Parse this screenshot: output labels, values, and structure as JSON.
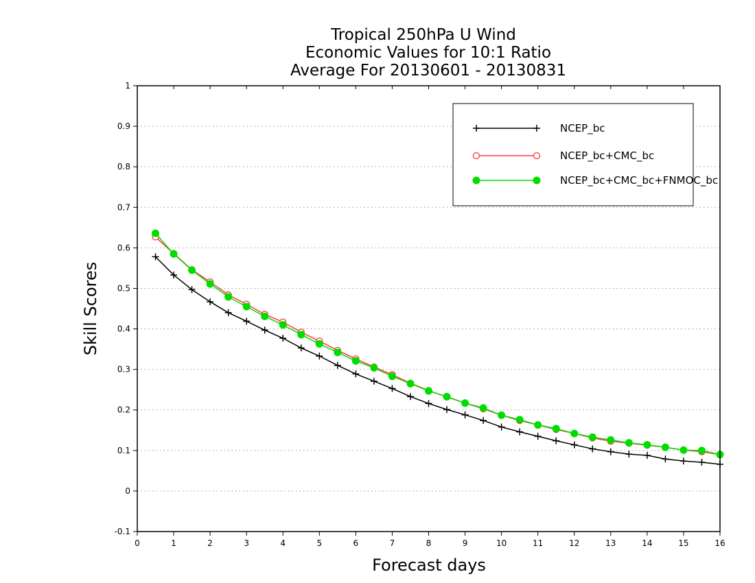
{
  "chart_data": {
    "type": "line",
    "title": [
      "Tropical 250hPa U Wind",
      "Economic Values for 10:1 Ratio",
      "Average For 20130601 - 20130831"
    ],
    "xlabel": "Forecast days",
    "ylabel": "Skill Scores",
    "xlim": [
      0,
      16
    ],
    "ylim": [
      -0.1,
      1
    ],
    "xticks": [
      "0",
      "1",
      "2",
      "3",
      "4",
      "5",
      "6",
      "7",
      "8",
      "9",
      "10",
      "11",
      "12",
      "13",
      "14",
      "15",
      "16"
    ],
    "yticks": [
      "-0.1",
      "0",
      "0.1",
      "0.2",
      "0.3",
      "0.4",
      "0.5",
      "0.6",
      "0.7",
      "0.8",
      "0.9",
      "1"
    ],
    "grid": "horizontal dotted",
    "legend_position": "top-right",
    "x": [
      0.5,
      1,
      1.5,
      2,
      2.5,
      3,
      3.5,
      4,
      4.5,
      5,
      5.5,
      6,
      6.5,
      7,
      7.5,
      8,
      8.5,
      9,
      9.5,
      10,
      10.5,
      11,
      11.5,
      12,
      12.5,
      13,
      13.5,
      14,
      14.5,
      15,
      15.5,
      16
    ],
    "series": [
      {
        "name": "NCEP_bc",
        "color": "#000000",
        "marker": "plus",
        "values": [
          0.578,
          0.533,
          0.497,
          0.467,
          0.44,
          0.419,
          0.397,
          0.377,
          0.353,
          0.333,
          0.31,
          0.289,
          0.271,
          0.253,
          0.233,
          0.216,
          0.201,
          0.188,
          0.174,
          0.158,
          0.146,
          0.135,
          0.124,
          0.114,
          0.104,
          0.097,
          0.091,
          0.088,
          0.079,
          0.074,
          0.071,
          0.066
        ]
      },
      {
        "name": "NCEP_bc+CMC_bc",
        "color": "#ff3333",
        "marker": "open-circle",
        "values": [
          0.627,
          0.586,
          0.546,
          0.516,
          0.484,
          0.461,
          0.436,
          0.417,
          0.392,
          0.37,
          0.347,
          0.326,
          0.306,
          0.287,
          0.266,
          0.248,
          0.232,
          0.217,
          0.203,
          0.187,
          0.174,
          0.163,
          0.152,
          0.142,
          0.131,
          0.123,
          0.118,
          0.113,
          0.108,
          0.101,
          0.097,
          0.09
        ]
      },
      {
        "name": "NCEP_bc+CMC_bc+FNMOC_bc",
        "color": "#00dd00",
        "marker": "filled-circle",
        "values": [
          0.636,
          0.585,
          0.545,
          0.511,
          0.479,
          0.455,
          0.431,
          0.41,
          0.386,
          0.363,
          0.342,
          0.321,
          0.304,
          0.283,
          0.265,
          0.247,
          0.233,
          0.217,
          0.205,
          0.187,
          0.176,
          0.163,
          0.154,
          0.142,
          0.133,
          0.126,
          0.119,
          0.114,
          0.108,
          0.101,
          0.1,
          0.09
        ]
      }
    ]
  }
}
